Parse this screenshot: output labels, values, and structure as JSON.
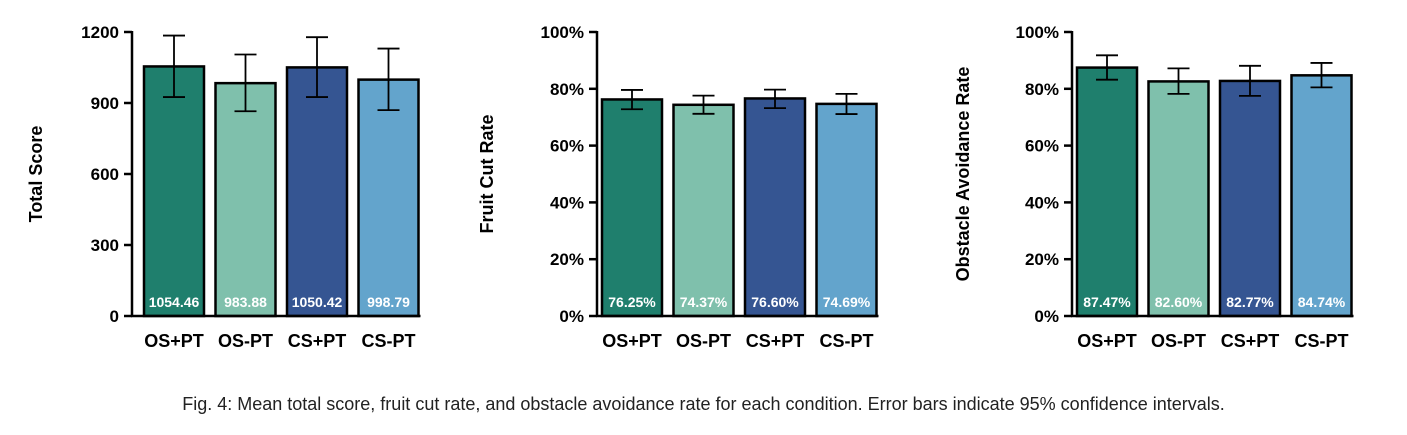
{
  "colors": {
    "OS+PT": "#1f7f6d",
    "OS-PT": "#7fc0ac",
    "CS+PT": "#355592",
    "CS-PT": "#63a4cc",
    "axis": "#000000",
    "bar_label": "#ffffff"
  },
  "caption": "Fig. 4: Mean total score, fruit cut rate, and obstacle avoidance rate for each condition. Error bars indicate 95% confidence intervals.",
  "chart_data": [
    {
      "type": "bar",
      "ylabel": "Total Score",
      "categories": [
        "OS+PT",
        "OS-PT",
        "CS+PT",
        "CS-PT"
      ],
      "values": [
        1054.46,
        983.88,
        1050.42,
        998.79
      ],
      "value_labels": [
        "1054.46",
        "983.88",
        "1050.42",
        "998.79"
      ],
      "error_low": [
        925,
        865,
        925,
        870
      ],
      "error_high": [
        1185,
        1105,
        1178,
        1130
      ],
      "ylim": [
        0,
        1200
      ],
      "yticks": [
        0,
        300,
        600,
        900,
        1200
      ],
      "ytick_labels": [
        "0",
        "300",
        "600",
        "900",
        "1200"
      ],
      "grid": false
    },
    {
      "type": "bar",
      "ylabel": "Fruit Cut Rate",
      "categories": [
        "OS+PT",
        "OS-PT",
        "CS+PT",
        "CS-PT"
      ],
      "values": [
        76.25,
        74.37,
        76.6,
        74.69
      ],
      "value_labels": [
        "76.25%",
        "74.37%",
        "76.60%",
        "74.69%"
      ],
      "error_low": [
        72.8,
        71.2,
        73.2,
        71.1
      ],
      "error_high": [
        79.6,
        77.6,
        79.7,
        78.2
      ],
      "ylim": [
        0,
        100
      ],
      "yticks": [
        0,
        20,
        40,
        60,
        80,
        100
      ],
      "ytick_labels": [
        "0%",
        "20%",
        "40%",
        "60%",
        "80%",
        "100%"
      ],
      "grid": false
    },
    {
      "type": "bar",
      "ylabel": "Obstacle Avoidance Rate",
      "categories": [
        "OS+PT",
        "OS-PT",
        "CS+PT",
        "CS-PT"
      ],
      "values": [
        87.47,
        82.6,
        82.77,
        84.74
      ],
      "value_labels": [
        "87.47%",
        "82.60%",
        "82.77%",
        "84.74%"
      ],
      "error_low": [
        83.2,
        78.2,
        77.5,
        80.5
      ],
      "error_high": [
        91.8,
        87.2,
        88.1,
        89.1
      ],
      "ylim": [
        0,
        100
      ],
      "yticks": [
        0,
        20,
        40,
        60,
        80,
        100
      ],
      "ytick_labels": [
        "0%",
        "20%",
        "40%",
        "60%",
        "80%",
        "100%"
      ],
      "grid": false
    }
  ]
}
